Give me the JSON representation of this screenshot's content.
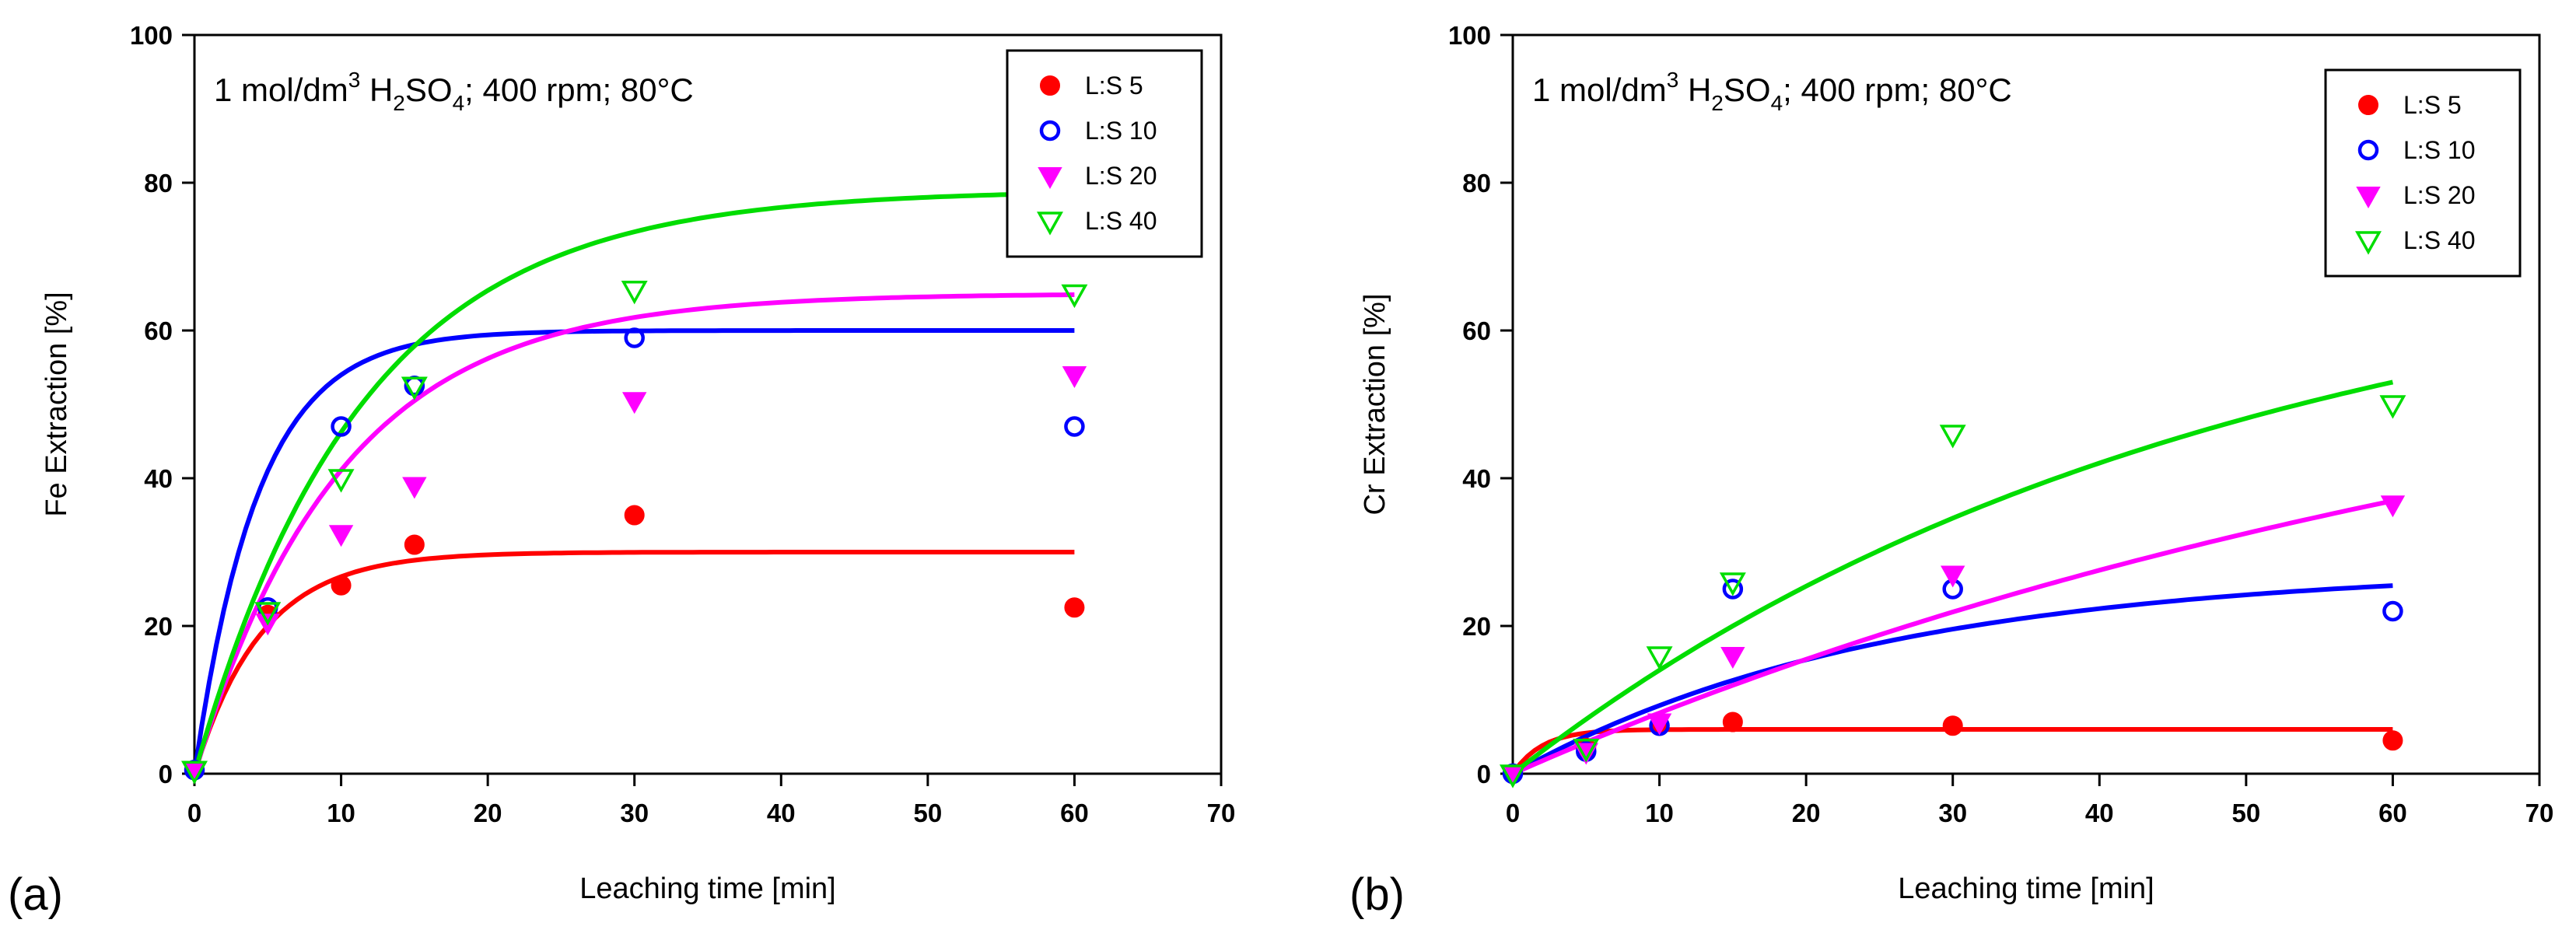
{
  "figure": {
    "panel_labels": [
      "(a)",
      "(b)"
    ]
  },
  "chart_data": [
    {
      "type": "scatter",
      "panel": "(a)",
      "annotation": {
        "prefix": "1 mol/dm",
        "sup": "3",
        "reagent_a": " H",
        "sub1": "2",
        "reagent_b": "SO",
        "sub2": "4",
        "suffix": "; 400 rpm; 80°C"
      },
      "xlabel": "Leaching time [min]",
      "ylabel": "Fe Extraction [%]",
      "xlim": [
        0,
        70
      ],
      "ylim": [
        0,
        100
      ],
      "xticks": [
        "0",
        "10",
        "20",
        "30",
        "40",
        "50",
        "60",
        "70"
      ],
      "yticks": [
        "0",
        "20",
        "40",
        "60",
        "80",
        "100"
      ],
      "legend_position": "top-right",
      "series": [
        {
          "name": "L:S 5",
          "marker": "filled-circle",
          "color": "#ff0000",
          "x": [
            0,
            5,
            10,
            15,
            30,
            60
          ],
          "y": [
            0.5,
            21.5,
            25.5,
            31,
            35,
            22.5
          ],
          "fit": {
            "ymax": 30,
            "k": 0.22,
            "from": 0
          }
        },
        {
          "name": "L:S 10",
          "marker": "open-circle",
          "color": "#0000ff",
          "x": [
            0,
            5,
            10,
            15,
            30,
            60
          ],
          "y": [
            0.5,
            22.5,
            47,
            52.5,
            59,
            47
          ],
          "fit": {
            "ymax": 60,
            "k": 0.23,
            "from": 0
          }
        },
        {
          "name": "L:S 20",
          "marker": "filled-triangle-down",
          "color": "#ff00ff",
          "x": [
            0,
            5,
            10,
            15,
            30,
            60
          ],
          "y": [
            0.5,
            20.5,
            32.5,
            39,
            50.5,
            54
          ],
          "fit": {
            "ymax": 65,
            "k": 0.1,
            "from": 0
          }
        },
        {
          "name": "L:S 40",
          "marker": "open-triangle-down",
          "color": "#00dd00",
          "x": [
            0,
            5,
            10,
            15,
            30,
            60
          ],
          "y": [
            0.5,
            22,
            40,
            52.5,
            65.5,
            65
          ],
          "fit": {
            "ymax": 79,
            "k": 0.088,
            "from": 0
          }
        }
      ]
    },
    {
      "type": "scatter",
      "panel": "(b)",
      "annotation": {
        "prefix": "1 mol/dm",
        "sup": "3",
        "reagent_a": " H",
        "sub1": "2",
        "reagent_b": "SO",
        "sub2": "4",
        "suffix": "; 400 rpm; 80°C"
      },
      "xlabel": "Leaching time [min]",
      "ylabel": "Cr Extraction [%]",
      "xlim": [
        0,
        70
      ],
      "ylim": [
        0,
        100
      ],
      "xticks": [
        "0",
        "10",
        "20",
        "30",
        "40",
        "50",
        "60",
        "70"
      ],
      "yticks": [
        "0",
        "20",
        "40",
        "60",
        "80",
        "100"
      ],
      "legend_position": "top-right",
      "series": [
        {
          "name": "L:S 5",
          "marker": "filled-circle",
          "color": "#ff0000",
          "x": [
            0,
            5,
            10,
            15,
            30,
            60
          ],
          "y": [
            0,
            3.5,
            6.5,
            7,
            6.5,
            4.5
          ],
          "fit": {
            "ymax": 6,
            "k": 0.5,
            "from": 0
          }
        },
        {
          "name": "L:S 10",
          "marker": "open-circle",
          "color": "#0000ff",
          "x": [
            0,
            5,
            10,
            15,
            30,
            60
          ],
          "y": [
            0,
            3,
            6.5,
            25,
            25,
            22
          ],
          "fit": {
            "ymax": 28,
            "k": 0.04,
            "from": 0
          }
        },
        {
          "name": "L:S 20",
          "marker": "filled-triangle-down",
          "color": "#ff00ff",
          "x": [
            0,
            5,
            10,
            15,
            30,
            60
          ],
          "y": [
            0,
            3,
            7,
            16,
            27,
            36.5
          ],
          "fit": {
            "ymax": 70,
            "k": 0.0125,
            "from": 0
          }
        },
        {
          "name": "L:S 40",
          "marker": "open-triangle-down",
          "color": "#00dd00",
          "x": [
            0,
            5,
            10,
            15,
            30,
            60
          ],
          "y": [
            0,
            3.5,
            16,
            26,
            46,
            50
          ],
          "fit": {
            "ymax": 74,
            "k": 0.021,
            "from": 0
          }
        }
      ]
    }
  ]
}
